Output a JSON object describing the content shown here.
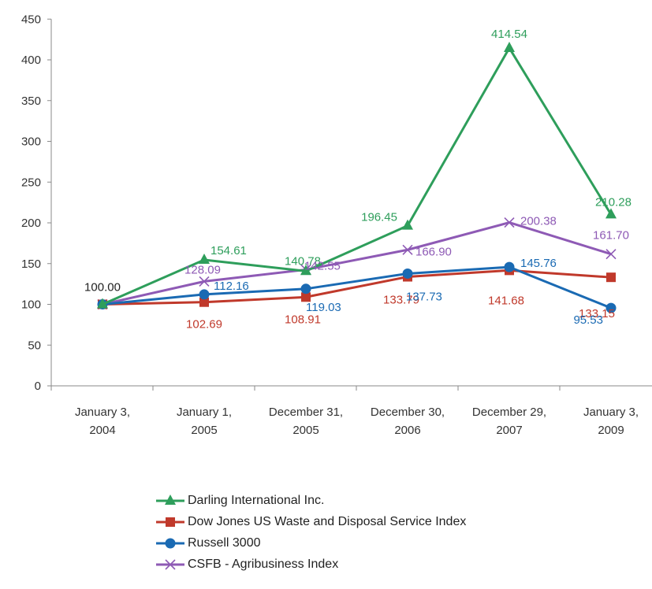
{
  "chart_data": {
    "type": "line",
    "categories": [
      [
        "January 3,",
        "2004"
      ],
      [
        "January 1,",
        "2005"
      ],
      [
        "December 31,",
        "2005"
      ],
      [
        "December 30,",
        "2006"
      ],
      [
        "December 29,",
        "2007"
      ],
      [
        "January 3,",
        "2009"
      ]
    ],
    "ylim": [
      0,
      450
    ],
    "yticks": [
      0,
      50,
      100,
      150,
      200,
      250,
      300,
      350,
      400,
      450
    ],
    "grid": false,
    "legend_position": "bottom",
    "series": [
      {
        "name": "Darling International Inc.",
        "color": "#2e9e5b",
        "marker": "triangle",
        "values": [
          100.0,
          154.61,
          140.78,
          196.45,
          414.54,
          210.28
        ],
        "labels": [
          "100.00",
          "154.61",
          "140.78",
          "196.45",
          "414.54",
          "210.28"
        ]
      },
      {
        "name": "Dow Jones US Waste and Disposal Service Index",
        "color": "#c0392b",
        "marker": "square",
        "values": [
          100.0,
          102.69,
          108.91,
          133.79,
          141.68,
          133.15
        ],
        "labels": [
          "",
          "102.69",
          "108.91",
          "133.79",
          "141.68",
          "133.15"
        ]
      },
      {
        "name": "Russell 3000",
        "color": "#1a6ab3",
        "marker": "circle",
        "values": [
          100.0,
          112.16,
          119.03,
          137.73,
          145.76,
          95.53
        ],
        "labels": [
          "",
          "112.16",
          "119.03",
          "137.73",
          "145.76",
          "95.53"
        ]
      },
      {
        "name": "CSFB - Agribusiness Index",
        "color": "#8e5ab5",
        "marker": "x",
        "values": [
          100.0,
          128.09,
          142.55,
          166.9,
          200.38,
          161.7
        ],
        "labels": [
          "",
          "128.09",
          "142.55",
          "166.90",
          "200.38",
          "161.70"
        ]
      }
    ]
  }
}
